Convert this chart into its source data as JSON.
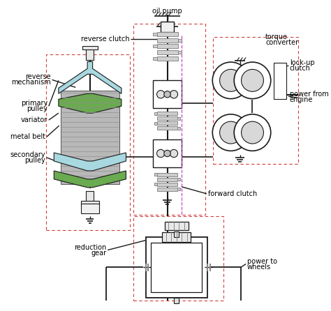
{
  "bg_color": "#ffffff",
  "lc": "#1a1a1a",
  "gc": "#888888",
  "dc": "#d04040",
  "mc": "#cc44cc",
  "grn": "#6aaa50",
  "cy": "#a8d8e0",
  "belt_gray": "#b8b8b8",
  "labels": {
    "oil_pump": "oil pump",
    "reverse_clutch": "reverse clutch",
    "torque_converter": [
      "torque",
      "converter"
    ],
    "reverse_mechanism": [
      "reverse",
      "mechanism"
    ],
    "primary_pulley": [
      "primary",
      "pulley"
    ],
    "variator": "variator",
    "metal_belt": "metal belt",
    "secondary_pulley": [
      "secondary",
      "pulley"
    ],
    "lock_up_clutch": [
      "lock-up",
      "clutch"
    ],
    "power_from_engine": [
      "power from",
      "engine"
    ],
    "forward_clutch": "forward clutch",
    "reduction_gear": [
      "reduction",
      "gear"
    ],
    "power_to_wheels": [
      "power to",
      "wheels"
    ]
  },
  "figsize": [
    4.74,
    4.46
  ],
  "dpi": 100
}
